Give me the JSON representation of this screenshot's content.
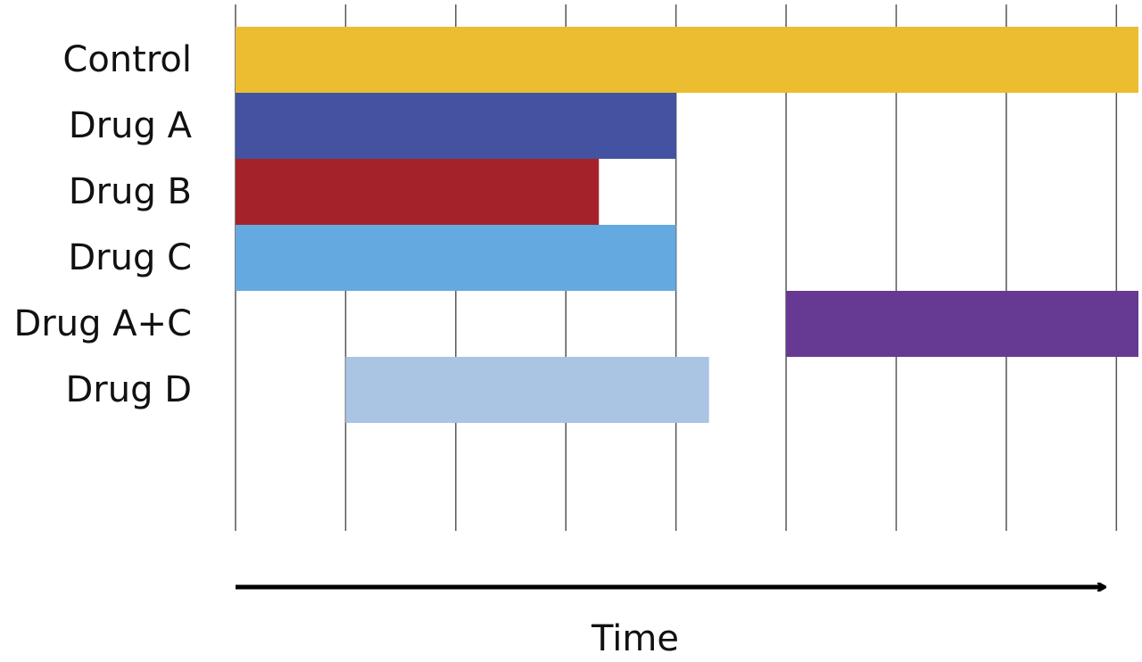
{
  "chart_data": {
    "type": "gantt",
    "x_label": "Time",
    "categories": [
      "Control",
      "Drug A",
      "Drug B",
      "Drug C",
      "Drug A+C",
      "Drug D"
    ],
    "starts": [
      0,
      0,
      0,
      0,
      5,
      1
    ],
    "ends": [
      8.2,
      4,
      3.3,
      4,
      8.2,
      4.3
    ],
    "colors": [
      "#ecbd30",
      "#4353a1",
      "#a4232b",
      "#64aae0",
      "#663a92",
      "#aac4e3"
    ],
    "xlim": [
      0,
      8.2
    ],
    "xticks": [
      0,
      1,
      2,
      3,
      4,
      5,
      6,
      7,
      8
    ],
    "show_tick_labels": false,
    "grid": true
  }
}
